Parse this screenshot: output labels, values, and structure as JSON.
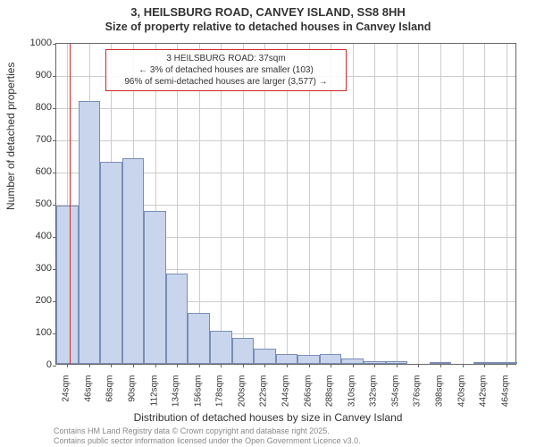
{
  "chart": {
    "type": "histogram",
    "title_main": "3, HEILSBURG ROAD, CANVEY ISLAND, SS8 8HH",
    "title_sub": "Size of property relative to detached houses in Canvey Island",
    "xlabel": "Distribution of detached houses by size in Canvey Island",
    "ylabel": "Number of detached properties",
    "background_color": "#ffffff",
    "grid_color": "#cccccc",
    "axis_color": "#666666",
    "bar_fill": "#c9d5ec",
    "bar_border": "#7a8db5",
    "ref_line_color": "#d02828",
    "title_fontsize": 13,
    "label_fontsize": 12,
    "tick_fontsize": 11,
    "xtick_fontsize": 10,
    "ylim": [
      0,
      1000
    ],
    "ytick_step": 100,
    "xtick_labels": [
      "24sqm",
      "46sqm",
      "68sqm",
      "90sqm",
      "112sqm",
      "134sqm",
      "156sqm",
      "178sqm",
      "200sqm",
      "222sqm",
      "244sqm",
      "266sqm",
      "288sqm",
      "310sqm",
      "332sqm",
      "354sqm",
      "376sqm",
      "398sqm",
      "420sqm",
      "442sqm",
      "464sqm"
    ],
    "bars": [
      492,
      818,
      628,
      638,
      476,
      280,
      158,
      102,
      80,
      48,
      30,
      28,
      30,
      18,
      8,
      8,
      0,
      4,
      0,
      2,
      2
    ],
    "bar_width_rel": 1.0,
    "ref_line_x_index": 0.6,
    "annotation": {
      "lines": [
        "3 HEILSBURG ROAD: 37sqm",
        "← 3% of detached houses are smaller (103)",
        "96% of semi-detached houses are larger (3,577) →"
      ],
      "border_color": "#d02828"
    },
    "footer_lines": [
      "Contains HM Land Registry data © Crown copyright and database right 2025.",
      "Contains public sector information licensed under the Open Government Licence v3.0."
    ]
  }
}
